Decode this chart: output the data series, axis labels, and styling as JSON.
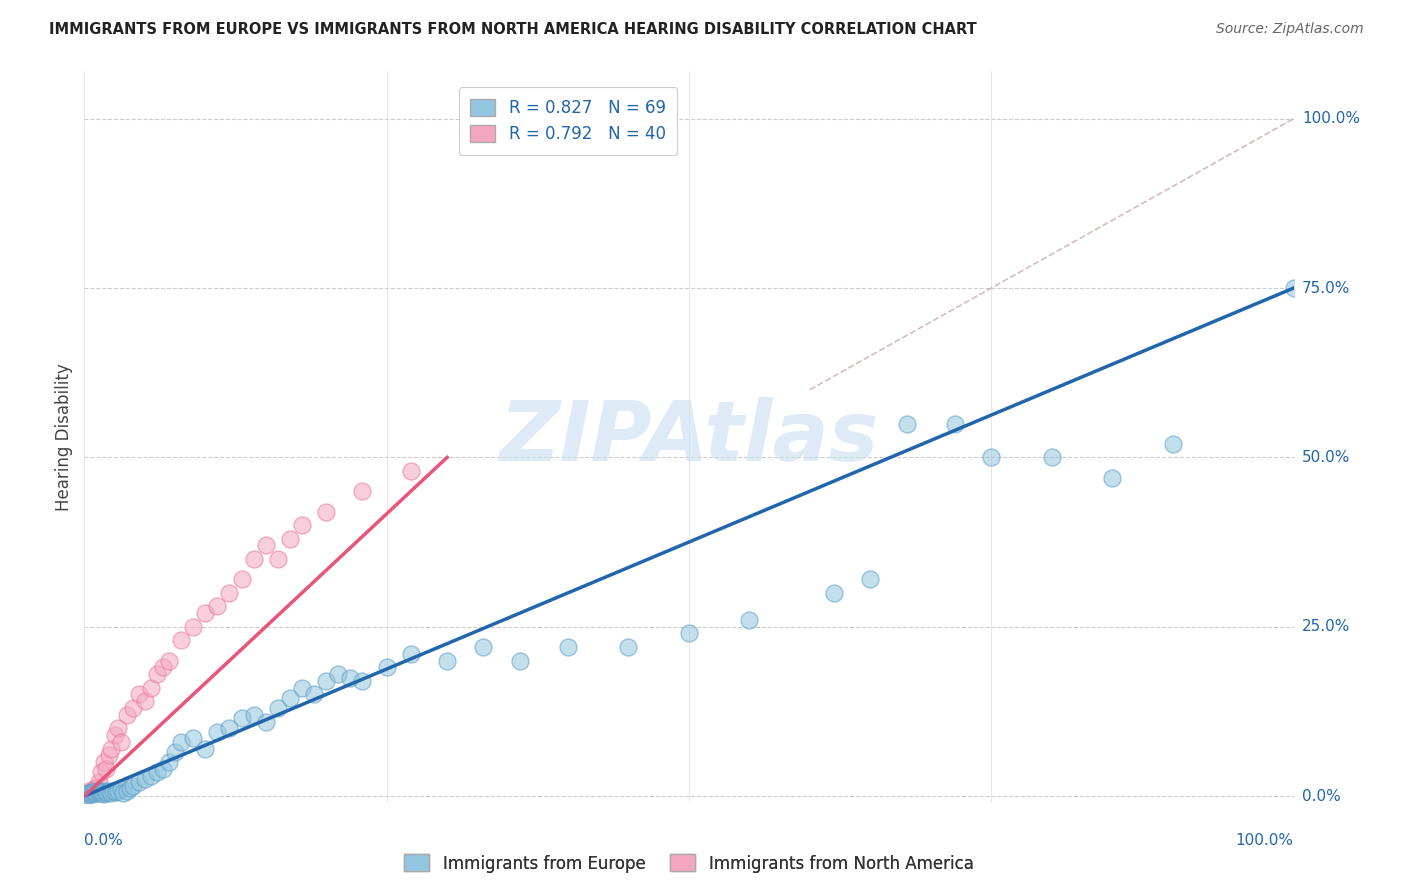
{
  "title": "IMMIGRANTS FROM EUROPE VS IMMIGRANTS FROM NORTH AMERICA HEARING DISABILITY CORRELATION CHART",
  "source": "Source: ZipAtlas.com",
  "ylabel": "Hearing Disability",
  "xlim": [
    0,
    100
  ],
  "ylim": [
    -1,
    107
  ],
  "ytick_values": [
    0,
    25,
    50,
    75,
    100
  ],
  "ytick_labels": [
    "0.0%",
    "25.0%",
    "50.0%",
    "75.0%",
    "100.0%"
  ],
  "xtick_values": [
    0,
    100
  ],
  "xtick_labels": [
    "0.0%",
    "100.0%"
  ],
  "legend_bottom": [
    "Immigrants from Europe",
    "Immigrants from North America"
  ],
  "legend_top_blue": "R = 0.827   N = 69",
  "legend_top_pink": "R = 0.792   N = 40",
  "blue_scatter_color": "#92c5de",
  "blue_scatter_edge": "#5b9ec9",
  "pink_scatter_color": "#f4a6c0",
  "pink_scatter_edge": "#e8799e",
  "blue_line_color": "#2166ac",
  "pink_line_color": "#e8547a",
  "ref_line_color": "#ccaaaa",
  "watermark_color": "#c8dff0",
  "watermark": "ZIPAtlas",
  "blue_scatter_x": [
    0.2,
    0.3,
    0.4,
    0.5,
    0.6,
    0.7,
    0.8,
    0.9,
    1.0,
    1.1,
    1.2,
    1.3,
    1.4,
    1.5,
    1.6,
    1.7,
    1.8,
    1.9,
    2.0,
    2.2,
    2.4,
    2.6,
    2.8,
    3.0,
    3.2,
    3.5,
    3.8,
    4.0,
    4.5,
    5.0,
    5.5,
    6.0,
    6.5,
    7.0,
    7.5,
    8.0,
    9.0,
    10.0,
    11.0,
    12.0,
    13.0,
    14.0,
    15.0,
    16.0,
    17.0,
    18.0,
    19.0,
    20.0,
    21.0,
    22.0,
    23.0,
    25.0,
    27.0,
    30.0,
    33.0,
    36.0,
    40.0,
    45.0,
    50.0,
    55.0,
    62.0,
    65.0,
    68.0,
    72.0,
    75.0,
    80.0,
    85.0,
    90.0,
    100.0
  ],
  "blue_scatter_y": [
    0.3,
    0.2,
    0.4,
    0.5,
    0.3,
    0.6,
    0.4,
    0.8,
    0.5,
    0.7,
    0.4,
    0.6,
    0.8,
    0.5,
    0.3,
    0.7,
    0.4,
    0.6,
    0.8,
    0.5,
    0.7,
    0.6,
    0.8,
    1.0,
    0.5,
    0.8,
    1.2,
    1.5,
    2.0,
    2.5,
    3.0,
    3.5,
    4.0,
    5.0,
    6.5,
    8.0,
    8.5,
    7.0,
    9.5,
    10.0,
    11.5,
    12.0,
    11.0,
    13.0,
    14.5,
    16.0,
    15.0,
    17.0,
    18.0,
    17.5,
    17.0,
    19.0,
    21.0,
    20.0,
    22.0,
    20.0,
    22.0,
    22.0,
    24.0,
    26.0,
    30.0,
    32.0,
    55.0,
    55.0,
    50.0,
    50.0,
    47.0,
    52.0,
    75.0
  ],
  "pink_scatter_x": [
    0.2,
    0.3,
    0.4,
    0.5,
    0.6,
    0.7,
    0.8,
    0.9,
    1.0,
    1.2,
    1.4,
    1.6,
    1.8,
    2.0,
    2.2,
    2.5,
    2.8,
    3.0,
    3.5,
    4.0,
    4.5,
    5.0,
    5.5,
    6.0,
    6.5,
    7.0,
    8.0,
    9.0,
    10.0,
    11.0,
    12.0,
    13.0,
    14.0,
    15.0,
    16.0,
    17.0,
    18.0,
    20.0,
    23.0,
    27.0
  ],
  "pink_scatter_y": [
    0.5,
    0.3,
    0.7,
    0.4,
    0.8,
    0.6,
    1.0,
    0.7,
    1.2,
    2.0,
    3.5,
    5.0,
    4.0,
    6.0,
    7.0,
    9.0,
    10.0,
    8.0,
    12.0,
    13.0,
    15.0,
    14.0,
    16.0,
    18.0,
    19.0,
    20.0,
    23.0,
    25.0,
    27.0,
    28.0,
    30.0,
    32.0,
    35.0,
    37.0,
    35.0,
    38.0,
    40.0,
    42.0,
    45.0,
    48.0
  ],
  "blue_line_x0": 0,
  "blue_line_y0": 0,
  "blue_line_x1": 100,
  "blue_line_y1": 75,
  "pink_line_x0": 0,
  "pink_line_y0": 0,
  "pink_line_x1": 30,
  "pink_line_y1": 50,
  "ref_line_x0": 60,
  "ref_line_y0": 60,
  "ref_line_x1": 100,
  "ref_line_y1": 100
}
